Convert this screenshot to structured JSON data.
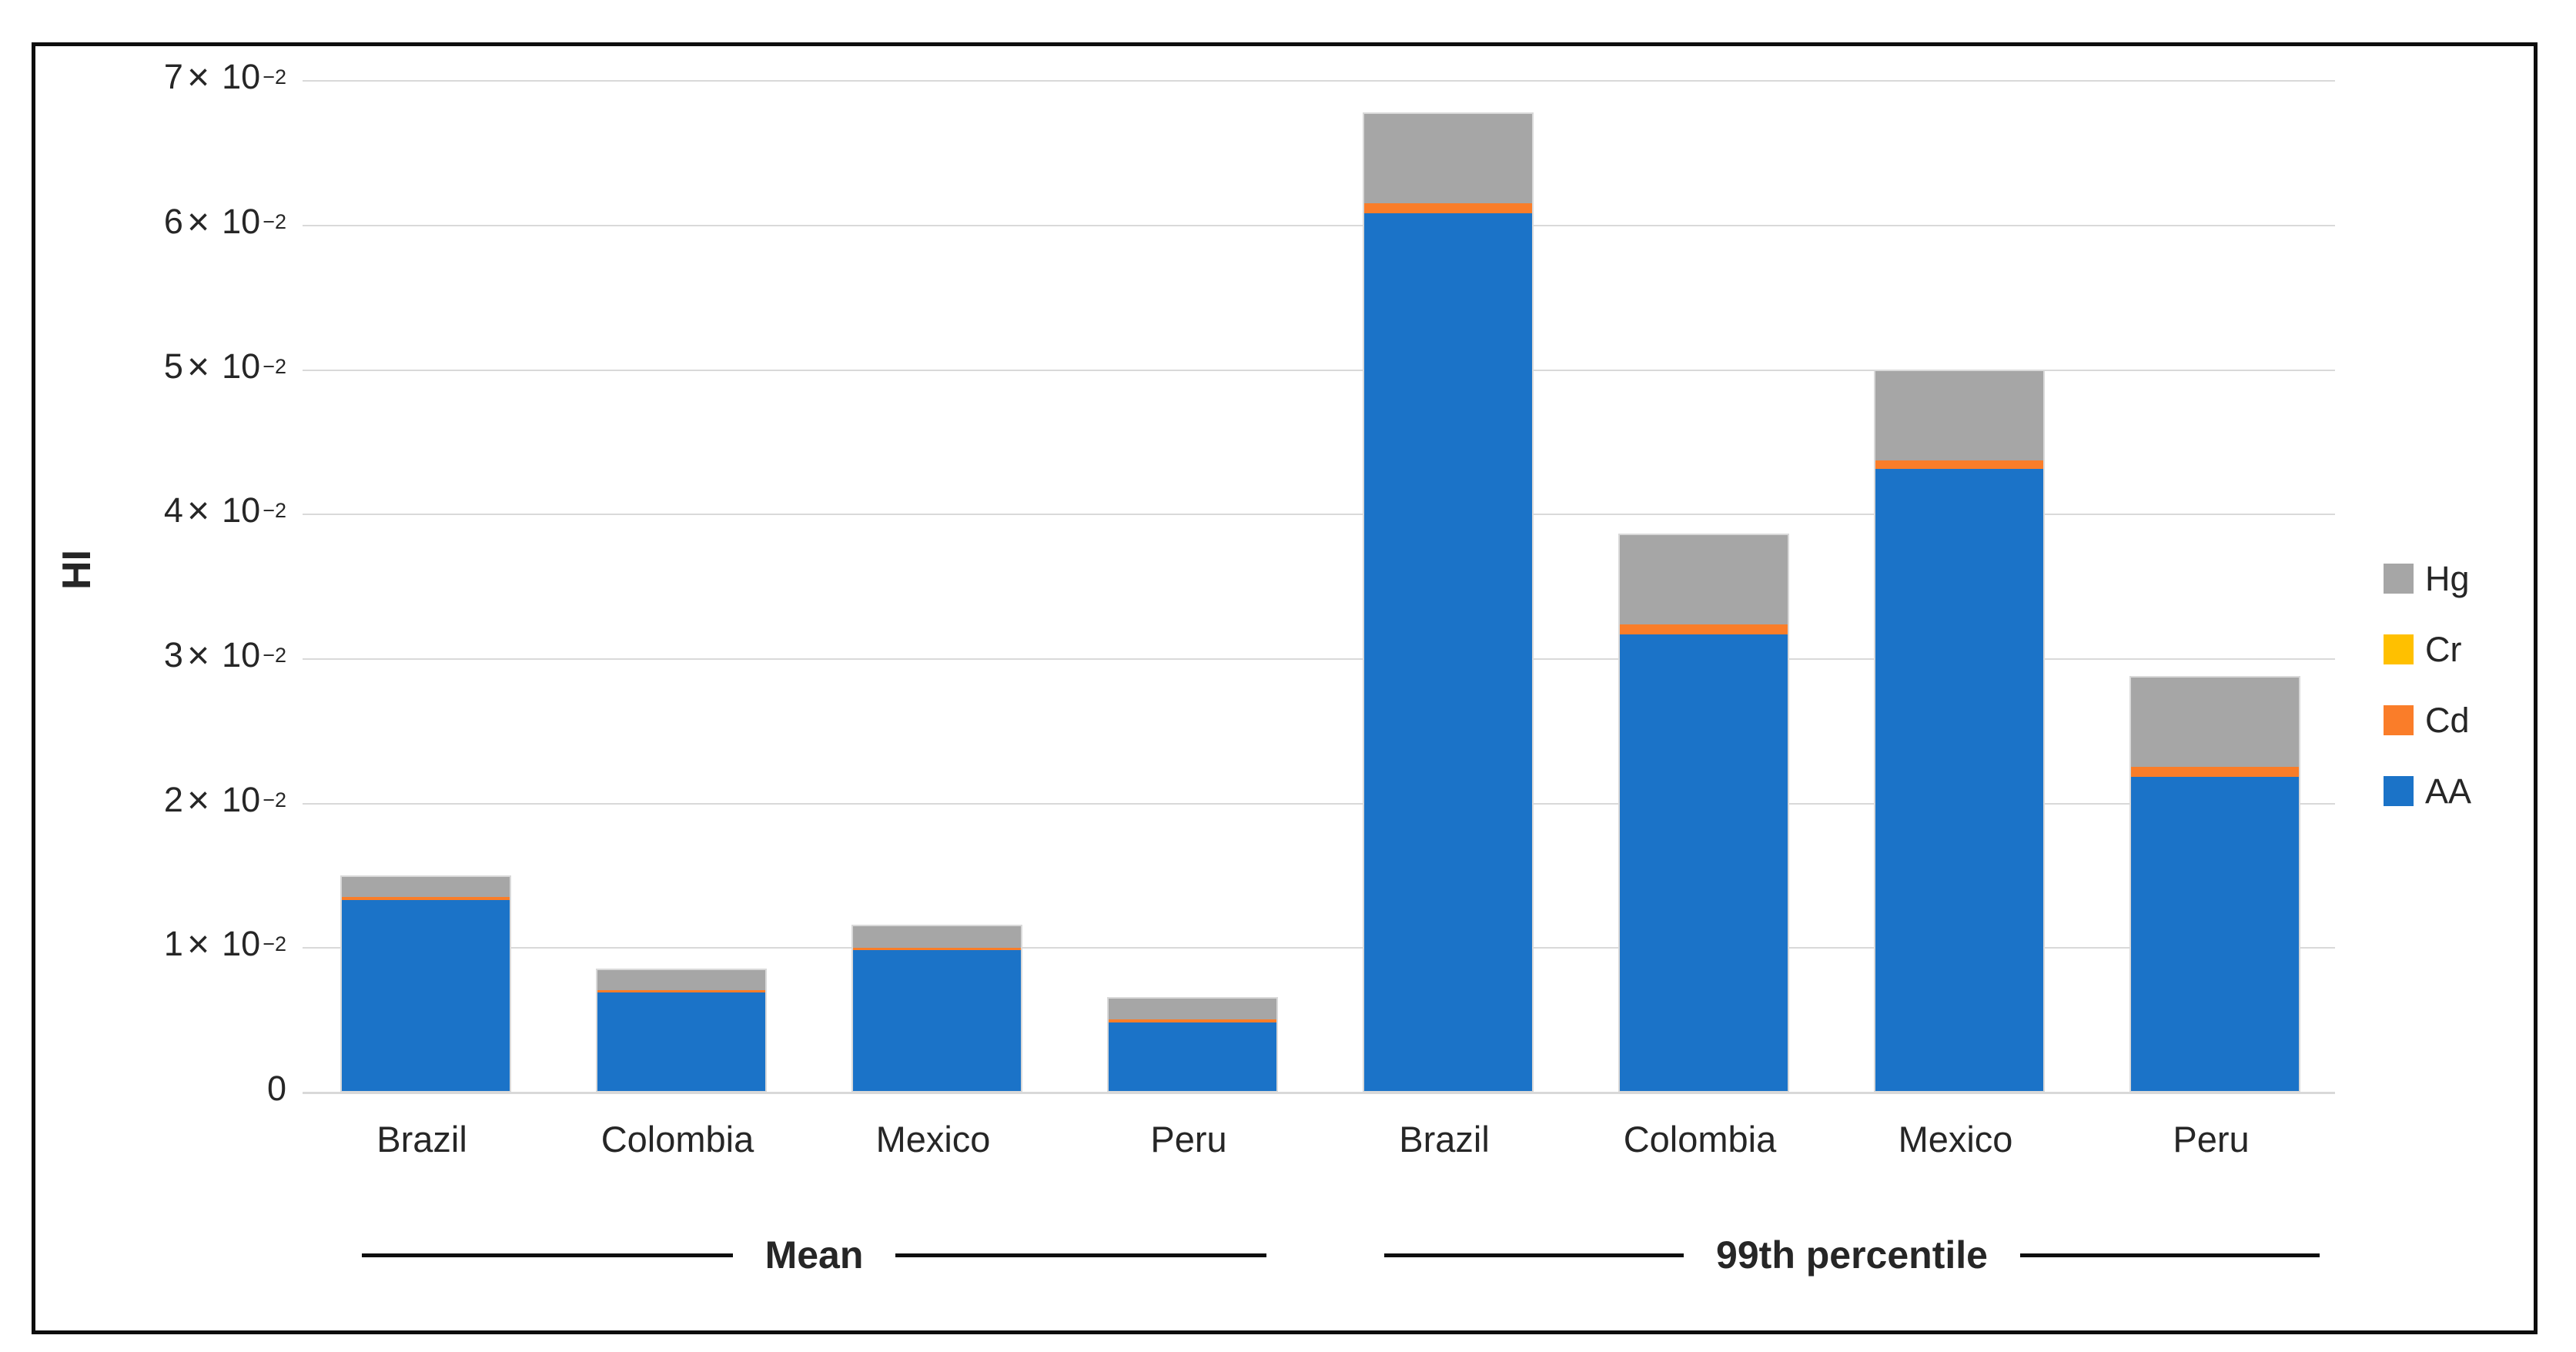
{
  "chart_data": {
    "type": "bar",
    "stacked": true,
    "title": "",
    "grid": true,
    "gridline_color": "#D9D9D9",
    "frame_color": "#0d0d0d",
    "y_axis": {
      "label": "HI",
      "min": 0,
      "max": 0.07,
      "tick_step": 0.01,
      "tick_times_symbol": "×",
      "tick_base": "10",
      "tick_exponent": "−2",
      "ticks": [
        {
          "value": 0.07,
          "coef": "7"
        },
        {
          "value": 0.06,
          "coef": "6"
        },
        {
          "value": 0.05,
          "coef": "5"
        },
        {
          "value": 0.04,
          "coef": "4"
        },
        {
          "value": 0.03,
          "coef": "3"
        },
        {
          "value": 0.02,
          "coef": "2"
        },
        {
          "value": 0.01,
          "coef": "1"
        },
        {
          "value": 0,
          "coef": "0"
        }
      ]
    },
    "x_axis": {
      "groups": [
        {
          "label": "Mean",
          "categories": [
            "Brazil",
            "Colombia",
            "Mexico",
            "Peru"
          ]
        },
        {
          "label": "99th percentile",
          "categories": [
            "Brazil",
            "Colombia",
            "Mexico",
            "Peru"
          ]
        }
      ]
    },
    "series": [
      {
        "name": "AA",
        "color": "#1B73C8",
        "values": [
          0.0134,
          0.007,
          0.0099,
          0.0049,
          0.0609,
          0.0318,
          0.0432,
          0.0219
        ]
      },
      {
        "name": "Cd",
        "color": "#FA7D29",
        "values": [
          0.0002,
          0.0002,
          0.0002,
          0.0002,
          0.0007,
          0.0007,
          0.0006,
          0.0007
        ]
      },
      {
        "name": "Cr",
        "color": "#FFC000",
        "values": [
          0,
          0,
          0,
          0,
          0,
          0,
          0,
          0
        ]
      },
      {
        "name": "Hg",
        "color": "#A6A6A6",
        "values": [
          0.0014,
          0.0014,
          0.0015,
          0.0015,
          0.0062,
          0.0062,
          0.0062,
          0.0062
        ]
      }
    ],
    "totals": [
      0.015,
      0.0086,
      0.0116,
      0.0066,
      0.0678,
      0.0387,
      0.05,
      0.0288
    ],
    "legend": {
      "position": "right",
      "entries": [
        {
          "label": "Hg",
          "color": "#A6A6A6"
        },
        {
          "label": "Cr",
          "color": "#FFC000"
        },
        {
          "label": "Cd",
          "color": "#FA7D29"
        },
        {
          "label": "AA",
          "color": "#1B73C8"
        }
      ]
    }
  }
}
